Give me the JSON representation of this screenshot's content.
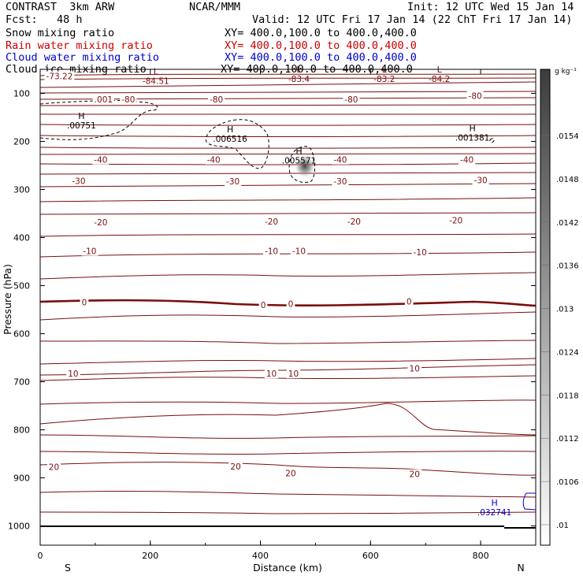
{
  "header": {
    "title": "CONTRAST",
    "model": "3km ARW",
    "org": "NCAR/MMM",
    "init": "Init: 12 UTC Wed 15 Jan 14",
    "fcst_label": "Fcst:",
    "fcst_value": "48 h",
    "valid": "Valid: 12 UTC Fri 17 Jan 14 (22 ChT Fri 17 Jan 14)",
    "fields": [
      {
        "name": "Snow mixing ratio",
        "xy": "XY= 400.0,100.0 to 400.0,400.0",
        "color": "#000000"
      },
      {
        "name": "Rain water mixing ratio",
        "xy": "XY= 400.0,100.0 to 400.0,400.0",
        "color": "#cc0000"
      },
      {
        "name": "Cloud water mixing ratio",
        "xy": "XY= 400.0,100.0 to 400.0,400.0",
        "color": "#0000cc"
      },
      {
        "name": "Cloud ice mixing ratio",
        "xy": "XY= 400.0,100.0 to 400.0,400.0",
        "color": "#000000"
      }
    ]
  },
  "chart_data": {
    "type": "cross-section contour",
    "xlabel": "Distance (km)",
    "ylabel": "Pressure (hPa)",
    "xlim": [
      0,
      900
    ],
    "ylim": [
      1040,
      50
    ],
    "x_ticks": [
      0,
      200,
      400,
      600,
      800
    ],
    "y_ticks": [
      100,
      200,
      300,
      400,
      500,
      600,
      700,
      800,
      900,
      1000
    ],
    "endpoint_labels": {
      "left": "S",
      "right": "N"
    },
    "contour_color": "#7a0d0d",
    "temperature_labels": [
      {
        "text": "-73.22",
        "x": 35,
        "p": 64
      },
      {
        "text": ".001",
        "x": 115,
        "p": 112
      },
      {
        "text": "-80",
        "x": 160,
        "p": 112
      },
      {
        "text": "-80",
        "x": 320,
        "p": 112
      },
      {
        "text": "-80",
        "x": 565,
        "p": 112
      },
      {
        "text": "-80",
        "x": 790,
        "p": 105
      },
      {
        "text": "-40",
        "x": 110,
        "p": 238
      },
      {
        "text": "-40",
        "x": 315,
        "p": 238
      },
      {
        "text": "-40",
        "x": 545,
        "p": 238
      },
      {
        "text": "-40",
        "x": 775,
        "p": 238
      },
      {
        "text": "-30",
        "x": 70,
        "p": 282
      },
      {
        "text": "-30",
        "x": 350,
        "p": 283
      },
      {
        "text": "-30",
        "x": 545,
        "p": 283
      },
      {
        "text": "-30",
        "x": 800,
        "p": 280
      },
      {
        "text": "-20",
        "x": 110,
        "p": 368
      },
      {
        "text": "-20",
        "x": 420,
        "p": 366
      },
      {
        "text": "-20",
        "x": 570,
        "p": 366
      },
      {
        "text": "-20",
        "x": 755,
        "p": 364
      },
      {
        "text": "-10",
        "x": 90,
        "p": 428
      },
      {
        "text": "-10",
        "x": 420,
        "p": 428
      },
      {
        "text": "-10",
        "x": 470,
        "p": 428
      },
      {
        "text": "-10",
        "x": 690,
        "p": 430
      },
      {
        "text": "0",
        "x": 80,
        "p": 534
      },
      {
        "text": "0",
        "x": 405,
        "p": 540
      },
      {
        "text": "0",
        "x": 455,
        "p": 538
      },
      {
        "text": "0",
        "x": 670,
        "p": 533
      },
      {
        "text": "10",
        "x": 60,
        "p": 683
      },
      {
        "text": "10",
        "x": 420,
        "p": 683
      },
      {
        "text": "10",
        "x": 460,
        "p": 683
      },
      {
        "text": "10",
        "x": 680,
        "p": 672
      },
      {
        "text": "20",
        "x": 25,
        "p": 877
      },
      {
        "text": "20",
        "x": 355,
        "p": 876
      },
      {
        "text": "20",
        "x": 455,
        "p": 890
      },
      {
        "text": "20",
        "x": 680,
        "p": 892
      }
    ],
    "extrema": [
      {
        "type": "L",
        "value": "-84.51",
        "x": 210,
        "p": 67,
        "color": "#7a0d0d"
      },
      {
        "type": "L",
        "value": "-83.4",
        "x": 470,
        "p": 63,
        "color": "#7a0d0d"
      },
      {
        "type": "L",
        "value": "-83.2",
        "x": 625,
        "p": 63,
        "color": "#7a0d0d"
      },
      {
        "type": "L",
        "value": "-84.2",
        "x": 725,
        "p": 63,
        "color": "#7a0d0d"
      },
      {
        "type": "H",
        "value": ".00751",
        "x": 75,
        "p": 160,
        "color": "#000000"
      },
      {
        "type": "H",
        "value": ".006516",
        "x": 345,
        "p": 188,
        "color": "#000000"
      },
      {
        "type": "H",
        "value": ".005571",
        "x": 470,
        "p": 233,
        "color": "#000000"
      },
      {
        "type": "H",
        "value": ".001381",
        "x": 785,
        "p": 185,
        "color": "#000000"
      },
      {
        "type": "H",
        "value": ".032741",
        "x": 825,
        "p": 965,
        "color": "#0000cc"
      }
    ],
    "colorbar": {
      "unit": "g kg⁻¹",
      "labels": [
        ".0154",
        ".0148",
        ".0142",
        ".0136",
        ".013",
        ".0124",
        ".0118",
        ".0112",
        ".0106",
        ".01"
      ],
      "min": 0.01,
      "max": 0.016
    }
  }
}
